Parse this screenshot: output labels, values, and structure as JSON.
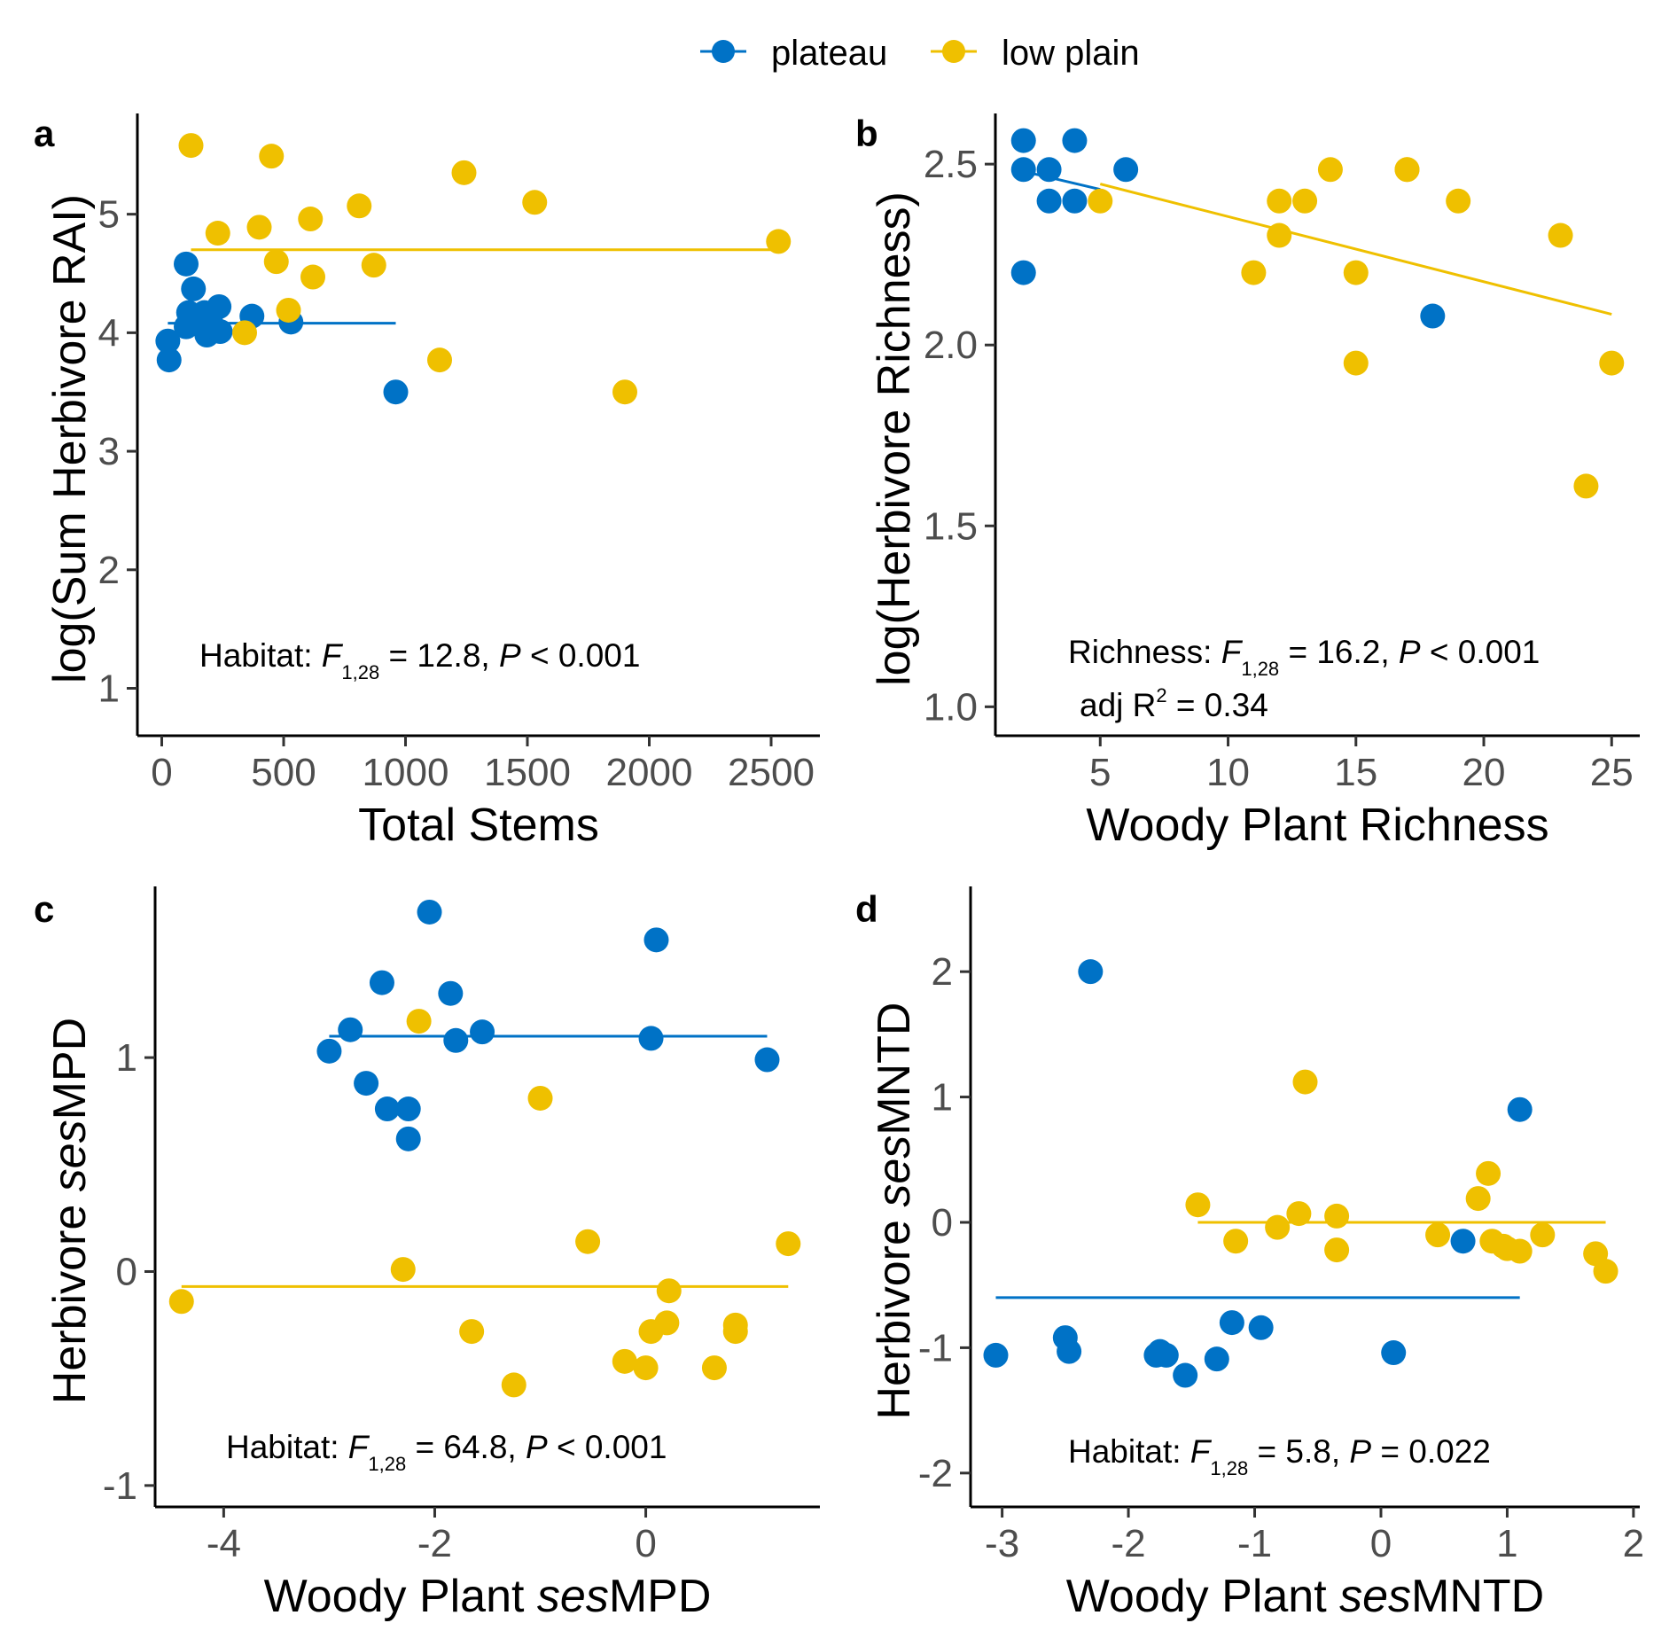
{
  "colors": {
    "plateau": "#0072C6",
    "low_plain": "#EFC000",
    "axis": "#000000",
    "tick_text": "#4d4d4d"
  },
  "legend": {
    "items": [
      {
        "key": "plateau",
        "label": "plateau"
      },
      {
        "key": "low_plain",
        "label": "low plain"
      }
    ]
  },
  "chart_data": [
    {
      "panel": "a",
      "type": "scatter",
      "xlabel": "Total Stems",
      "ylabel": "log(Sum Herbivore RAI)",
      "xlim": [
        -100,
        2700
      ],
      "ylim": [
        0.6,
        5.85
      ],
      "xticks": [
        0,
        500,
        1000,
        1500,
        2000,
        2500
      ],
      "xtick_labels": [
        "0",
        "500",
        "1000",
        "1500",
        "2000",
        "2500"
      ],
      "yticks": [
        1,
        2,
        3,
        4,
        5
      ],
      "ytick_labels": [
        "1",
        "2",
        "3",
        "4",
        "5"
      ],
      "annotation": {
        "pre": "Habitat: ",
        "stat": "F",
        "sub": "1,28",
        "mid": " = 12.8, ",
        "p": "P",
        "post": " < 0.001"
      },
      "series": [
        {
          "name": "plateau",
          "x": [
            30,
            25,
            100,
            110,
            130,
            100,
            120,
            175,
            185,
            200,
            235,
            240,
            370,
            530,
            960
          ],
          "y": [
            3.77,
            3.93,
            4.58,
            4.17,
            4.37,
            4.05,
            4.12,
            4.17,
            3.98,
            4.1,
            4.22,
            4.01,
            4.14,
            4.09,
            3.5
          ]
        },
        {
          "name": "low plain",
          "x": [
            120,
            230,
            400,
            450,
            470,
            610,
            620,
            340,
            520,
            810,
            870,
            1240,
            1530,
            1140,
            1900,
            2530
          ],
          "y": [
            5.58,
            4.84,
            4.89,
            5.49,
            4.6,
            4.96,
            4.47,
            4.0,
            4.19,
            5.07,
            4.57,
            5.35,
            5.1,
            3.77,
            3.5,
            4.77
          ]
        }
      ],
      "fits": [
        {
          "name": "plateau",
          "x": [
            25,
            960
          ],
          "y": [
            4.08,
            4.08
          ]
        },
        {
          "name": "low plain",
          "x": [
            120,
            2530
          ],
          "y": [
            4.7,
            4.7
          ]
        }
      ]
    },
    {
      "panel": "b",
      "type": "scatter",
      "xlabel": "Woody Plant Richness",
      "ylabel": "log(Herbivore Richness)",
      "xlim": [
        0.9,
        26.1
      ],
      "ylim": [
        0.92,
        2.64
      ],
      "xticks": [
        5,
        10,
        15,
        20,
        25
      ],
      "xtick_labels": [
        "5",
        "10",
        "15",
        "20",
        "25"
      ],
      "yticks": [
        1.0,
        1.5,
        2.0,
        2.5
      ],
      "ytick_labels": [
        "1.0",
        "1.5",
        "2.0",
        "2.5"
      ],
      "annotation": {
        "pre": "Richness: ",
        "stat": "F",
        "sub": "1,28",
        "mid": " = 16.2, ",
        "p": "P",
        "post": " < 0.001"
      },
      "annotation2": {
        "pre": "adj R",
        "sup": "2",
        "post": " = 0.34"
      },
      "series": [
        {
          "name": "plateau",
          "x": [
            2,
            2,
            2,
            3,
            3,
            4,
            4,
            6,
            18
          ],
          "y": [
            2.565,
            2.485,
            2.2,
            2.485,
            2.398,
            2.565,
            2.398,
            2.485,
            2.08
          ]
        },
        {
          "name": "low plain",
          "x": [
            5,
            11,
            12,
            12,
            13,
            14,
            15,
            15,
            17,
            17,
            19,
            23,
            24,
            25
          ],
          "y": [
            2.398,
            2.2,
            2.398,
            2.303,
            2.398,
            2.485,
            2.2,
            1.95,
            2.485,
            2.485,
            2.398,
            2.303,
            1.61,
            1.95
          ]
        }
      ],
      "fits": [
        {
          "name": "plateau",
          "x": [
            2,
            5
          ],
          "y": [
            2.48,
            2.43
          ]
        },
        {
          "name": "low plain",
          "x": [
            5,
            25
          ],
          "y": [
            2.445,
            2.085
          ]
        }
      ]
    },
    {
      "panel": "c",
      "type": "scatter",
      "xlabel_pre": "Woody Plant ",
      "xlabel_italic": "ses",
      "xlabel_post": "MPD",
      "ylabel_pre": "Herbivore ",
      "ylabel_italic": "ses",
      "ylabel_post": "MPD",
      "xlim": [
        -4.65,
        1.65
      ],
      "ylim": [
        -1.1,
        1.8
      ],
      "xticks": [
        -4,
        -2,
        0
      ],
      "xtick_labels": [
        "-4",
        "-2",
        "0"
      ],
      "yticks": [
        -1,
        0,
        1
      ],
      "ytick_labels": [
        "-1",
        "0",
        "1"
      ],
      "annotation": {
        "pre": "Habitat: ",
        "stat": "F",
        "sub": "1,28",
        "mid": " = 64.8, ",
        "p": "P",
        "post": " < 0.001"
      },
      "series": [
        {
          "name": "plateau",
          "x": [
            -3.0,
            -2.8,
            -2.65,
            -2.5,
            -2.45,
            -2.25,
            -2.25,
            -2.05,
            -1.85,
            -1.8,
            -1.55,
            0.05,
            0.1,
            1.15
          ],
          "y": [
            1.03,
            1.13,
            0.88,
            1.35,
            0.76,
            0.76,
            0.62,
            1.68,
            1.3,
            1.08,
            1.12,
            1.09,
            1.55,
            0.99
          ]
        },
        {
          "name": "low plain",
          "x": [
            -4.4,
            -2.15,
            -2.3,
            -1.65,
            -1.25,
            -1.0,
            -0.55,
            -0.2,
            0.0,
            0.05,
            0.2,
            0.22,
            0.65,
            0.85,
            0.85,
            1.35
          ],
          "y": [
            -0.14,
            1.17,
            0.01,
            -0.28,
            -0.53,
            0.81,
            0.14,
            -0.42,
            -0.45,
            -0.28,
            -0.24,
            -0.09,
            -0.45,
            -0.25,
            -0.28,
            0.13
          ]
        }
      ],
      "fits": [
        {
          "name": "plateau",
          "x": [
            -3.0,
            1.15
          ],
          "y": [
            1.1,
            1.1
          ]
        },
        {
          "name": "low plain",
          "x": [
            -4.4,
            1.35
          ],
          "y": [
            -0.07,
            -0.07
          ]
        }
      ]
    },
    {
      "panel": "d",
      "type": "scatter",
      "xlabel_pre": "Woody Plant ",
      "xlabel_italic": "ses",
      "xlabel_post": "MNTD",
      "ylabel_pre": "Herbivore ",
      "ylabel_italic": "ses",
      "ylabel_post": "MNTD",
      "xlim": [
        -3.25,
        2.05
      ],
      "ylim": [
        -2.27,
        2.68
      ],
      "xticks": [
        -3,
        -2,
        -1,
        0,
        1,
        2
      ],
      "xtick_labels": [
        "-3",
        "-2",
        "-1",
        "0",
        "1",
        "2"
      ],
      "yticks": [
        -2,
        -1,
        0,
        1,
        2
      ],
      "ytick_labels": [
        "-2",
        "-1",
        "0",
        "1",
        "2"
      ],
      "annotation": {
        "pre": "Habitat: ",
        "stat": "F",
        "sub": "1,28",
        "mid": " = 5.8, ",
        "p": "P",
        "post": " = 0.022"
      },
      "series": [
        {
          "name": "plateau",
          "x": [
            -3.05,
            -2.3,
            -2.5,
            -2.47,
            -1.78,
            -1.75,
            -1.7,
            -1.55,
            -1.3,
            -1.18,
            -0.95,
            0.1,
            0.65,
            1.1
          ],
          "y": [
            -1.06,
            2.0,
            -0.92,
            -1.03,
            -1.06,
            -1.03,
            -1.06,
            -1.22,
            -1.09,
            -0.8,
            -0.84,
            -1.04,
            -0.15,
            0.9
          ]
        },
        {
          "name": "low plain",
          "x": [
            -1.45,
            -1.15,
            -0.82,
            -0.65,
            -0.6,
            -0.35,
            -0.35,
            0.45,
            0.77,
            0.85,
            0.88,
            0.97,
            1.0,
            1.1,
            1.28,
            1.7,
            1.78
          ],
          "y": [
            0.14,
            -0.15,
            -0.04,
            0.07,
            1.12,
            0.05,
            -0.22,
            -0.1,
            0.19,
            0.39,
            -0.15,
            -0.19,
            -0.21,
            -0.23,
            -0.1,
            -0.25,
            -0.39
          ]
        }
      ],
      "fits": [
        {
          "name": "plateau",
          "x": [
            -3.05,
            1.1
          ],
          "y": [
            -0.6,
            -0.6
          ]
        },
        {
          "name": "low plain",
          "x": [
            -1.45,
            1.78
          ],
          "y": [
            0.0,
            0.0
          ]
        }
      ]
    }
  ]
}
